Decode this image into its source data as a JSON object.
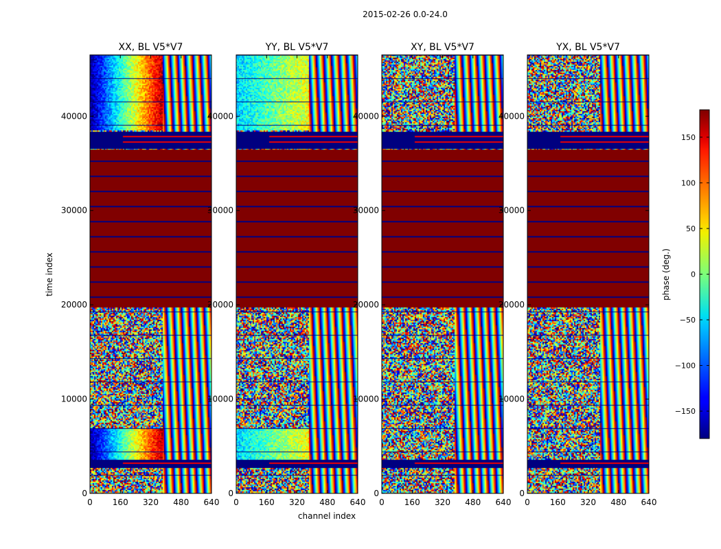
{
  "chart_data": {
    "type": "heatmap",
    "suptitle": "2015-02-26 0.0-24.0",
    "xlabel": "channel index",
    "ylabel": "time index",
    "xlim": [
      0,
      640
    ],
    "ylim": [
      0,
      46500
    ],
    "xticks": [
      0,
      160,
      320,
      480,
      640
    ],
    "yticks": [
      0,
      10000,
      20000,
      30000,
      40000
    ],
    "xtick_labels": [
      "0",
      "160",
      "320",
      "480",
      "640"
    ],
    "ytick_labels": [
      "0",
      "10000",
      "20000",
      "30000",
      "40000"
    ],
    "panels": [
      {
        "title": "XX, BL V5*V7"
      },
      {
        "title": "YY, BL V5*V7"
      },
      {
        "title": "XY, BL V5*V7"
      },
      {
        "title": "YX, BL V5*V7"
      }
    ],
    "colorbar": {
      "label": "phase (deg.)",
      "colormap": "jet",
      "vmin": -180,
      "vmax": 180,
      "ticks": [
        -150,
        -100,
        -50,
        0,
        50,
        100,
        150
      ],
      "tick_labels": [
        "−150",
        "−100",
        "−50",
        "0",
        "50",
        "100",
        "150"
      ]
    },
    "saturated_band": {
      "from": 19800,
      "to": 36500,
      "phase": 180
    },
    "flagged_bands": [
      [
        36700,
        38400
      ],
      [
        2700,
        3700
      ]
    ]
  }
}
